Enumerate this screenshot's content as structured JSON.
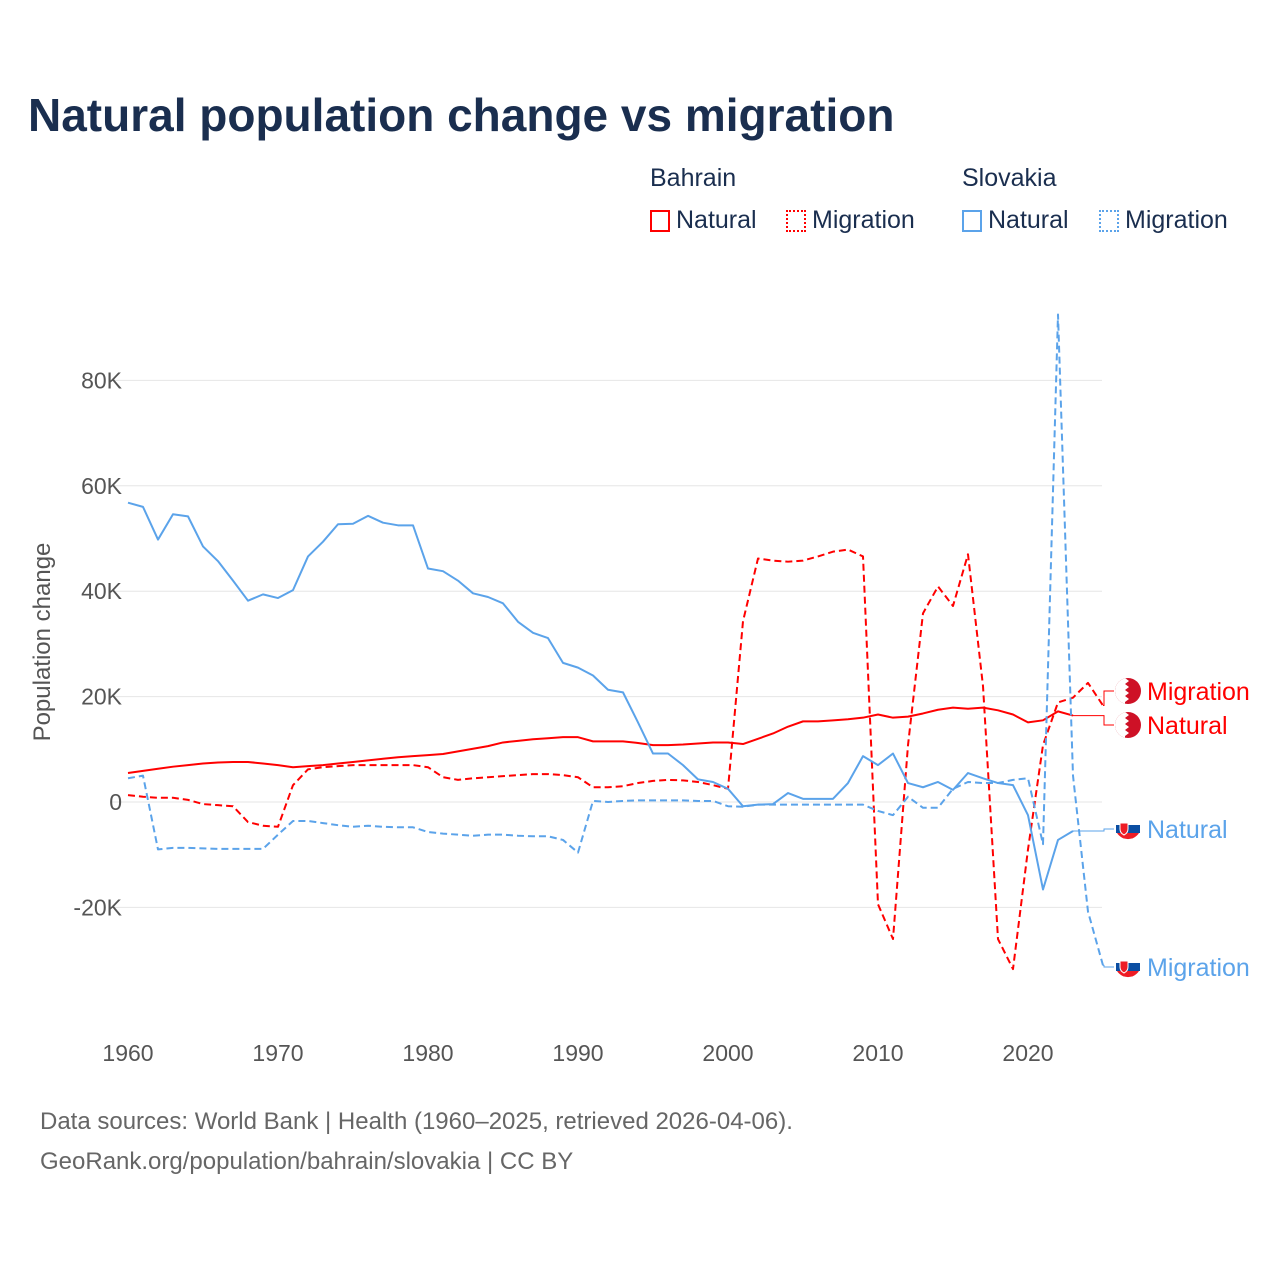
{
  "title": "Natural population change vs migration",
  "legend": {
    "groups": [
      {
        "name": "Bahrain",
        "items": [
          "Natural",
          "Migration"
        ],
        "color": "#ff0000"
      },
      {
        "name": "Slovakia",
        "items": [
          "Natural",
          "Migration"
        ],
        "color": "#5ba3ea"
      }
    ]
  },
  "footer": {
    "line1": "Data sources: World Bank | Health (1960–2025, retrieved 2026-04-06).",
    "line2": "GeoRank.org/population/bahrain/slovakia | CC BY"
  },
  "chart_data": {
    "type": "line",
    "title": "Natural population change vs migration",
    "xlabel": "",
    "ylabel": "Population change",
    "xlim": [
      1960,
      2025
    ],
    "ylim": [
      -35000,
      93000
    ],
    "x_ticks": [
      "1960",
      "1970",
      "1980",
      "1990",
      "2000",
      "2010",
      "2020"
    ],
    "y_ticks": [
      {
        "v": -20000,
        "label": "-20K"
      },
      {
        "v": 0,
        "label": "0"
      },
      {
        "v": 20000,
        "label": "20K"
      },
      {
        "v": 40000,
        "label": "40K"
      },
      {
        "v": 60000,
        "label": "60K"
      },
      {
        "v": 80000,
        "label": "80K"
      }
    ],
    "grid": true,
    "series": [
      {
        "name": "Bahrain Natural",
        "end_label": "Natural",
        "color": "#ff0000",
        "dash": false,
        "start": 1960,
        "values": [
          5.5,
          5.9,
          6.3,
          6.7,
          7.0,
          7.3,
          7.5,
          7.6,
          7.6,
          7.3,
          7.0,
          6.6,
          6.8,
          7.0,
          7.3,
          7.6,
          7.9,
          8.2,
          8.5,
          8.7,
          8.9,
          9.1,
          9.6,
          10.1,
          10.6,
          11.3,
          11.6,
          11.9,
          12.1,
          12.3,
          12.3,
          11.5,
          11.5,
          11.5,
          11.2,
          10.8,
          10.8,
          10.9,
          11.1,
          11.3,
          11.3,
          11.0,
          12.0,
          13.0,
          14.3,
          15.3,
          15.3,
          15.5,
          15.7,
          16.0,
          16.6,
          16.0,
          16.2,
          16.8,
          17.5,
          17.9,
          17.7,
          17.9,
          17.4,
          16.6,
          15.1,
          15.5,
          17.2,
          16.4
        ]
      },
      {
        "name": "Bahrain Migration",
        "end_label": "Migration",
        "color": "#ff0000",
        "dash": true,
        "start": 1960,
        "values": [
          1.3,
          1.0,
          0.8,
          0.8,
          0.4,
          -0.4,
          -0.6,
          -0.8,
          -3.8,
          -4.5,
          -4.7,
          3.2,
          6.2,
          6.6,
          6.8,
          7.0,
          7.0,
          7.0,
          7.0,
          7.0,
          6.6,
          4.7,
          4.2,
          4.5,
          4.7,
          4.9,
          5.1,
          5.3,
          5.3,
          5.1,
          4.7,
          2.8,
          2.8,
          3.0,
          3.6,
          4.0,
          4.2,
          4.1,
          3.8,
          3.2,
          2.5,
          34.3,
          46.2,
          45.8,
          45.6,
          45.8,
          46.6,
          47.5,
          47.9,
          46.6,
          -19.4,
          -26.0,
          10.8,
          35.8,
          40.9,
          37.2,
          47.0,
          22.0,
          -26.0,
          -31.7,
          -9.0,
          10.8,
          18.9,
          19.8,
          22.6,
          18.3
        ]
      },
      {
        "name": "Slovakia Natural",
        "end_label": "Natural",
        "color": "#5ba3ea",
        "dash": false,
        "start": 1960,
        "values": [
          56.8,
          56.0,
          49.8,
          54.6,
          54.2,
          48.5,
          45.7,
          42.0,
          38.2,
          39.4,
          38.7,
          40.2,
          46.6,
          49.4,
          52.7,
          52.8,
          54.3,
          53.0,
          52.5,
          52.5,
          44.3,
          43.8,
          42.0,
          39.6,
          38.9,
          37.7,
          34.2,
          32.1,
          31.1,
          26.4,
          25.5,
          24.0,
          21.3,
          20.8,
          15.1,
          9.2,
          9.2,
          7.0,
          4.3,
          3.8,
          2.5,
          -0.8,
          -0.5,
          -0.4,
          1.7,
          0.6,
          0.6,
          0.6,
          3.6,
          8.7,
          7.0,
          9.2,
          3.6,
          2.8,
          3.8,
          2.3,
          5.5,
          4.5,
          3.6,
          3.2,
          -2.5,
          -16.6,
          -7.2,
          -5.5
        ]
      },
      {
        "name": "Slovakia Migration",
        "end_label": "Migration",
        "color": "#5ba3ea",
        "dash": true,
        "start": 1960,
        "values": [
          4.5,
          5.0,
          -9.0,
          -8.7,
          -8.7,
          -8.8,
          -8.9,
          -8.9,
          -8.9,
          -8.9,
          -6.2,
          -3.6,
          -3.6,
          -4.0,
          -4.4,
          -4.7,
          -4.5,
          -4.7,
          -4.8,
          -4.8,
          -5.7,
          -6.0,
          -6.2,
          -6.4,
          -6.2,
          -6.2,
          -6.4,
          -6.5,
          -6.5,
          -7.2,
          -9.6,
          0.2,
          0.0,
          0.2,
          0.3,
          0.3,
          0.3,
          0.3,
          0.2,
          0.2,
          -0.8,
          -0.9,
          -0.5,
          -0.5,
          -0.5,
          -0.5,
          -0.5,
          -0.5,
          -0.5,
          -0.5,
          -1.7,
          -2.5,
          1.0,
          -1.1,
          -1.1,
          2.5,
          3.8,
          3.6,
          3.6,
          4.2,
          4.5,
          -8.0,
          92.5,
          5.0,
          -20.8,
          -31.0
        ]
      }
    ],
    "value_units": "thousands"
  }
}
